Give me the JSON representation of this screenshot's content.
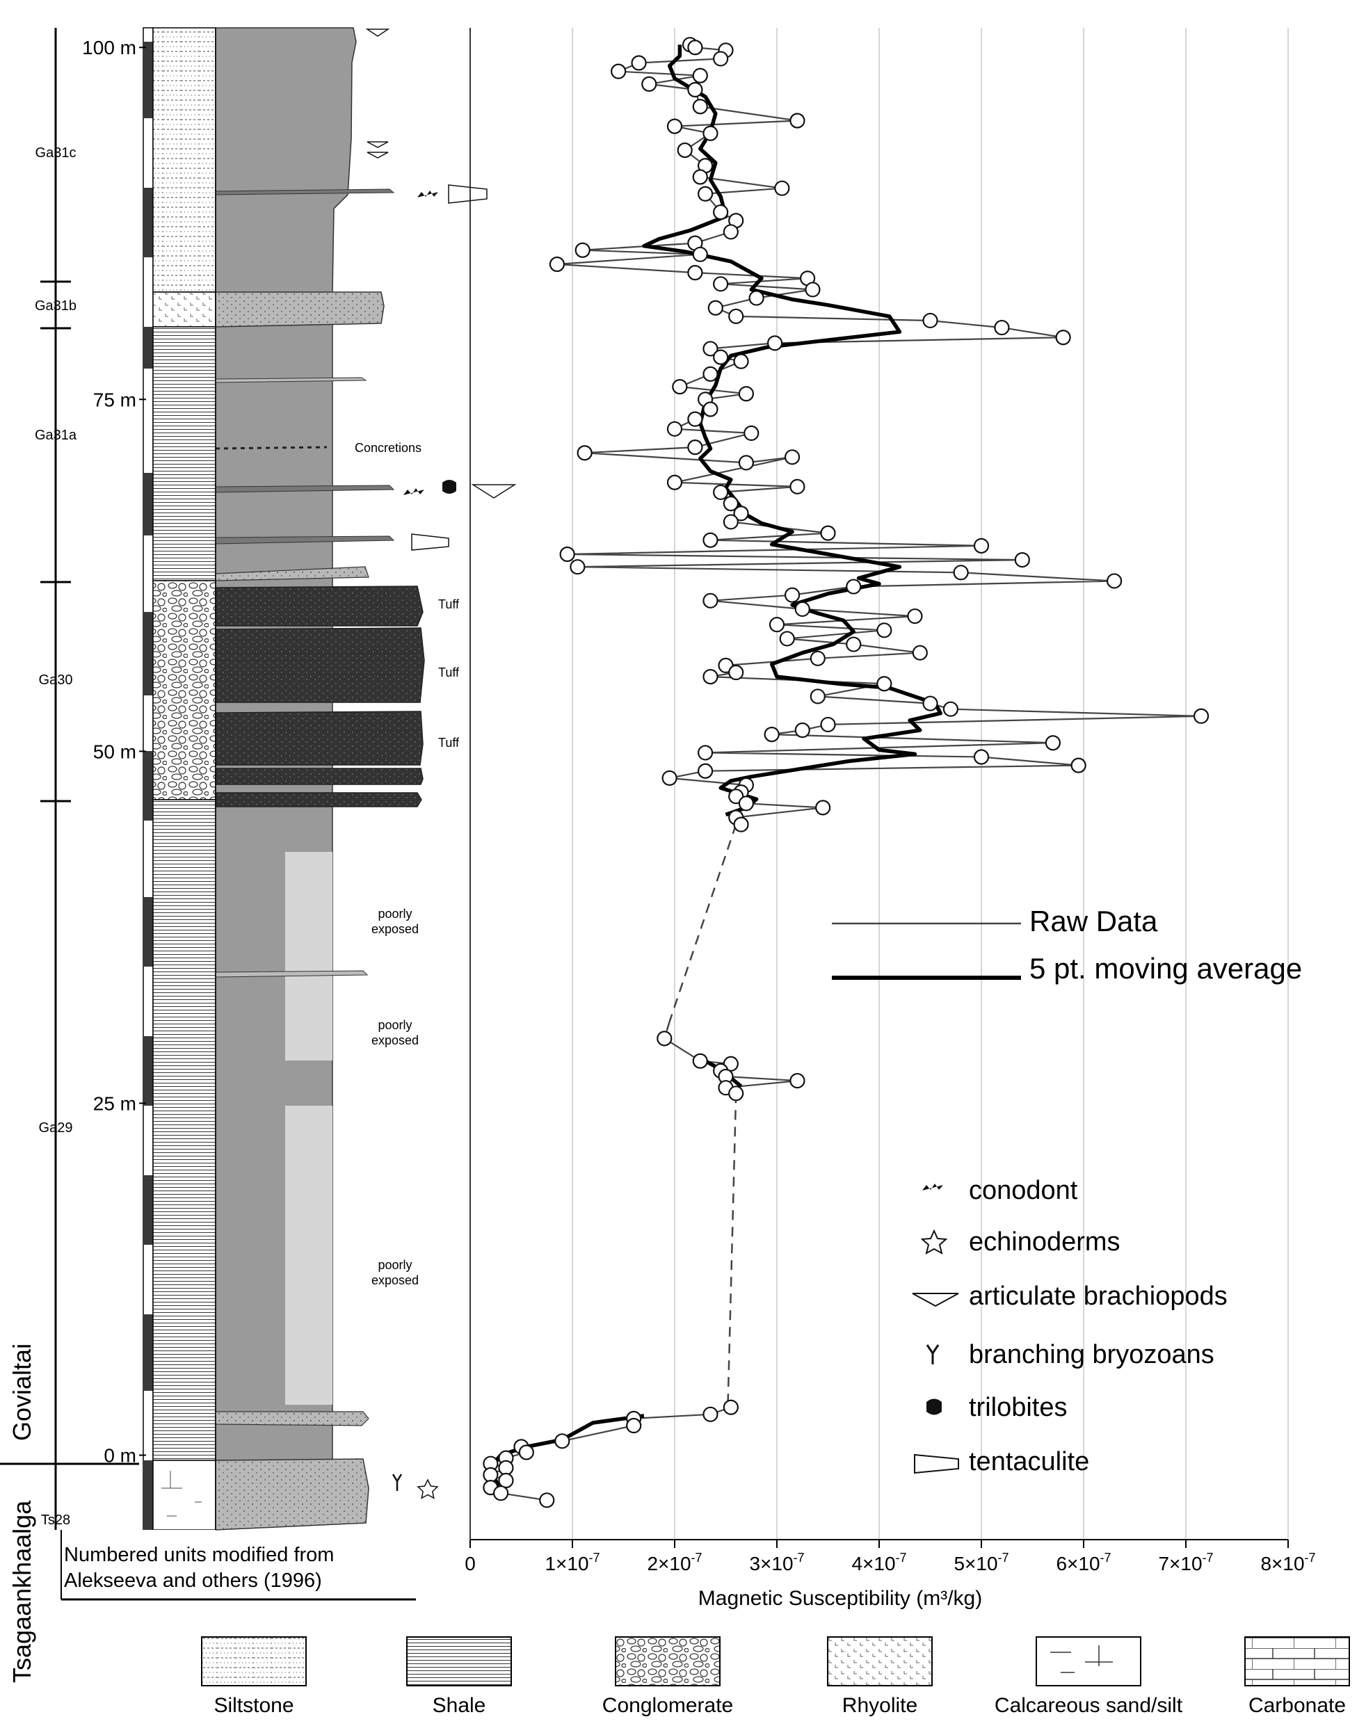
{
  "chart_data": {
    "type": "line",
    "xlabel": "Magnetic Susceptibility (m³/kg)",
    "ylabel": "",
    "xlim": [
      0,
      8e-07
    ],
    "ylim": [
      -6,
      101
    ],
    "x_tick_labels": [
      "0",
      "1×10",
      "2×10",
      "3×10",
      "4×10",
      "5×10",
      "6×10",
      "7×10",
      "8×10"
    ],
    "x_tick_exponent": "-7",
    "depth_labels": [
      {
        "value": 100,
        "label": "100 m"
      },
      {
        "value": 75,
        "label": "75 m"
      },
      {
        "value": 50,
        "label": "50 m"
      },
      {
        "value": 25,
        "label": "25 m"
      },
      {
        "value": 0,
        "label": "0 m"
      }
    ],
    "grid": "vertical",
    "legend_position": "right-middle",
    "series": [
      {
        "name": "Raw Data",
        "points": [
          [
            2.15e-07,
            100.2
          ],
          [
            2.2e-07,
            100.0
          ],
          [
            2.5e-07,
            99.8
          ],
          [
            2.45e-07,
            99.2
          ],
          [
            1.65e-07,
            98.9
          ],
          [
            1.45e-07,
            98.3
          ],
          [
            2.25e-07,
            98.0
          ],
          [
            1.75e-07,
            97.4
          ],
          [
            2.2e-07,
            97.0
          ],
          [
            2.25e-07,
            95.8
          ],
          [
            3.2e-07,
            94.8
          ],
          [
            2e-07,
            94.4
          ],
          [
            2.35e-07,
            93.9
          ],
          [
            2.1e-07,
            92.7
          ],
          [
            2.3e-07,
            91.6
          ],
          [
            2.25e-07,
            90.8
          ],
          [
            3.05e-07,
            90.0
          ],
          [
            2.3e-07,
            89.6
          ],
          [
            2.45e-07,
            88.3
          ],
          [
            2.6e-07,
            87.7
          ],
          [
            2.55e-07,
            86.9
          ],
          [
            2.2e-07,
            86.1
          ],
          [
            1.1e-07,
            85.6
          ],
          [
            2.25e-07,
            85.3
          ],
          [
            8.5e-08,
            84.6
          ],
          [
            2.2e-07,
            84.0
          ],
          [
            3.3e-07,
            83.6
          ],
          [
            2.45e-07,
            83.2
          ],
          [
            3.35e-07,
            82.8
          ],
          [
            2.8e-07,
            82.2
          ],
          [
            2.4e-07,
            81.5
          ],
          [
            2.6e-07,
            80.9
          ],
          [
            4.5e-07,
            80.6
          ],
          [
            5.2e-07,
            80.1
          ],
          [
            5.8e-07,
            79.4
          ],
          [
            2.98e-07,
            79.0
          ],
          [
            2.35e-07,
            78.6
          ],
          [
            2.45e-07,
            78.0
          ],
          [
            2.65e-07,
            77.7
          ],
          [
            2.35e-07,
            76.8
          ],
          [
            2.05e-07,
            75.9
          ],
          [
            2.7e-07,
            75.4
          ],
          [
            2.3e-07,
            75.0
          ],
          [
            2.35e-07,
            74.3
          ],
          [
            2.2e-07,
            73.6
          ],
          [
            2e-07,
            72.9
          ],
          [
            2.75e-07,
            72.6
          ],
          [
            2.2e-07,
            71.6
          ],
          [
            1.12e-07,
            71.2
          ],
          [
            2.7e-07,
            70.5
          ],
          [
            3.15e-07,
            70.9
          ],
          [
            2e-07,
            69.1
          ],
          [
            3.2e-07,
            68.8
          ],
          [
            2.45e-07,
            68.4
          ],
          [
            2.55e-07,
            67.6
          ],
          [
            2.65e-07,
            66.9
          ],
          [
            2.55e-07,
            66.3
          ],
          [
            3.5e-07,
            65.5
          ],
          [
            2.35e-07,
            65.0
          ],
          [
            5e-07,
            64.6
          ],
          [
            9.5e-08,
            64.0
          ],
          [
            5.4e-07,
            63.6
          ],
          [
            1.05e-07,
            63.1
          ],
          [
            4.8e-07,
            62.7
          ],
          [
            6.3e-07,
            62.1
          ],
          [
            3.75e-07,
            61.7
          ],
          [
            3.15e-07,
            61.1
          ],
          [
            2.35e-07,
            60.7
          ],
          [
            3.25e-07,
            60.1
          ],
          [
            4.35e-07,
            59.6
          ],
          [
            3e-07,
            59.0
          ],
          [
            4.05e-07,
            58.6
          ],
          [
            3.1e-07,
            58.0
          ],
          [
            3.75e-07,
            57.6
          ],
          [
            4.4e-07,
            57.0
          ],
          [
            3.4e-07,
            56.6
          ],
          [
            2.5e-07,
            56.1
          ],
          [
            2.6e-07,
            55.6
          ],
          [
            2.35e-07,
            55.3
          ],
          [
            4.05e-07,
            54.8
          ],
          [
            3.4e-07,
            53.9
          ],
          [
            4.5e-07,
            53.4
          ],
          [
            4.7e-07,
            53.0
          ],
          [
            7.15e-07,
            52.5
          ],
          [
            3.5e-07,
            51.9
          ],
          [
            3.25e-07,
            51.5
          ],
          [
            2.95e-07,
            51.2
          ],
          [
            5.7e-07,
            50.6
          ],
          [
            2.3e-07,
            49.9
          ],
          [
            5e-07,
            49.6
          ],
          [
            5.95e-07,
            49.0
          ],
          [
            2.3e-07,
            48.6
          ],
          [
            1.95e-07,
            48.1
          ],
          [
            2.7e-07,
            47.6
          ],
          [
            2.65e-07,
            47.1
          ],
          [
            2.6e-07,
            46.8
          ],
          [
            2.7e-07,
            46.3
          ],
          [
            3.45e-07,
            46.0
          ],
          [
            2.6e-07,
            45.3
          ],
          [
            2.65e-07,
            44.8
          ]
        ]
      },
      {
        "name": "Raw Data",
        "points": [
          [
            1.9e-07,
            29.6
          ],
          [
            2.25e-07,
            28.0
          ],
          [
            2.55e-07,
            27.8
          ],
          [
            2.45e-07,
            27.3
          ],
          [
            2.5e-07,
            26.9
          ],
          [
            3.2e-07,
            26.6
          ],
          [
            2.5e-07,
            26.1
          ],
          [
            2.6e-07,
            25.7
          ]
        ]
      },
      {
        "name": "Raw Data",
        "points": [
          [
            2.55e-07,
            3.4
          ],
          [
            2.35e-07,
            2.9
          ],
          [
            1.6e-07,
            2.6
          ],
          [
            1.6e-07,
            2.1
          ],
          [
            9e-08,
            1.0
          ],
          [
            5e-08,
            0.6
          ],
          [
            5.5e-08,
            0.2
          ],
          [
            3.5e-08,
            -0.2
          ],
          [
            2e-08,
            -0.6
          ],
          [
            3.5e-08,
            -0.9
          ],
          [
            2e-08,
            -1.4
          ],
          [
            3.5e-08,
            -1.8
          ],
          [
            2e-08,
            -2.3
          ],
          [
            3e-08,
            -2.7
          ],
          [
            7.5e-08,
            -3.2
          ]
        ]
      },
      {
        "name": "5 pt. moving average",
        "points": [
          [
            2.05e-07,
            100.2
          ],
          [
            2.05e-07,
            99.4
          ],
          [
            1.95e-07,
            98.7
          ],
          [
            2e-07,
            97.8
          ],
          [
            2.3e-07,
            96.5
          ],
          [
            2.4e-07,
            95.3
          ],
          [
            2.35e-07,
            94.0
          ],
          [
            2.25e-07,
            92.8
          ],
          [
            2.4e-07,
            91.8
          ],
          [
            2.35e-07,
            90.6
          ],
          [
            2.45e-07,
            89.4
          ],
          [
            2.5e-07,
            88.0
          ],
          [
            2.15e-07,
            87.0
          ],
          [
            1.85e-07,
            86.4
          ],
          [
            1.7e-07,
            85.9
          ],
          [
            2.1e-07,
            85.5
          ],
          [
            2.55e-07,
            84.8
          ],
          [
            2.85e-07,
            83.6
          ],
          [
            2.75e-07,
            82.8
          ],
          [
            3.15e-07,
            82.1
          ],
          [
            3.5e-07,
            81.7
          ],
          [
            4.1e-07,
            80.9
          ],
          [
            4.2e-07,
            79.8
          ],
          [
            3.6e-07,
            79.3
          ],
          [
            2.9e-07,
            78.7
          ],
          [
            2.55e-07,
            78.1
          ],
          [
            2.45e-07,
            77.2
          ],
          [
            2.4e-07,
            76.0
          ],
          [
            2.3e-07,
            74.8
          ],
          [
            2.25e-07,
            73.3
          ],
          [
            2.3e-07,
            72.3
          ],
          [
            2.35e-07,
            71.5
          ],
          [
            2.25e-07,
            70.8
          ],
          [
            2.35e-07,
            69.9
          ],
          [
            2.55e-07,
            69.3
          ],
          [
            2.5e-07,
            68.7
          ],
          [
            2.6e-07,
            67.8
          ],
          [
            2.7e-07,
            66.8
          ],
          [
            2.85e-07,
            66.2
          ],
          [
            3.15e-07,
            65.6
          ],
          [
            2.95e-07,
            64.7
          ],
          [
            3.5e-07,
            64.0
          ],
          [
            4.2e-07,
            63.1
          ],
          [
            3.8e-07,
            62.3
          ],
          [
            4e-07,
            61.9
          ],
          [
            3.5e-07,
            61.2
          ],
          [
            3.15e-07,
            60.4
          ],
          [
            3.4e-07,
            59.8
          ],
          [
            3.65e-07,
            59.3
          ],
          [
            3.75e-07,
            58.5
          ],
          [
            3.55e-07,
            57.6
          ],
          [
            3.25e-07,
            57.0
          ],
          [
            2.95e-07,
            56.2
          ],
          [
            3e-07,
            55.3
          ],
          [
            3.6e-07,
            54.8
          ],
          [
            4.1e-07,
            54.5
          ],
          [
            4.55e-07,
            53.4
          ],
          [
            4.6e-07,
            52.7
          ],
          [
            4.3e-07,
            52.2
          ],
          [
            4.4e-07,
            51.5
          ],
          [
            3.85e-07,
            50.9
          ],
          [
            4e-07,
            50.1
          ],
          [
            4.35e-07,
            49.8
          ],
          [
            3.7e-07,
            49.3
          ],
          [
            3.1e-07,
            48.6
          ],
          [
            2.75e-07,
            48.2
          ],
          [
            2.55e-07,
            47.9
          ],
          [
            2.45e-07,
            47.4
          ],
          [
            2.8e-07,
            46.6
          ],
          [
            2.7e-07,
            46.0
          ],
          [
            2.5e-07,
            45.5
          ]
        ]
      },
      {
        "name": "5 pt. moving average",
        "points": [
          [
            2.25e-07,
            28.2
          ],
          [
            2.4e-07,
            27.6
          ],
          [
            2.55e-07,
            26.8
          ],
          [
            2.65e-07,
            26.2
          ]
        ]
      },
      {
        "name": "5 pt. moving average",
        "points": [
          [
            1.7e-07,
            2.8
          ],
          [
            1.2e-07,
            2.3
          ],
          [
            9e-08,
            1.1
          ],
          [
            5.5e-08,
            0.6
          ],
          [
            3e-08,
            0.0
          ],
          [
            2e-08,
            -0.8
          ],
          [
            2.5e-08,
            -1.8
          ],
          [
            3e-08,
            -2.7
          ]
        ]
      }
    ],
    "gap_connectors": [
      {
        "from": [
          2.6e-07,
          44.8
        ],
        "to": [
          1.95e-07,
          30.8
        ]
      },
      {
        "from": [
          1.95e-07,
          30.8
        ],
        "to": [
          1.9e-07,
          29.6
        ]
      },
      {
        "from": [
          2.6e-07,
          25.7
        ],
        "to": [
          2.52e-07,
          3.4
        ]
      }
    ]
  },
  "legend": {
    "raw": "Raw Data",
    "avg": "5 pt. moving average"
  },
  "fossil_legend": [
    {
      "icon": "conodont-icon",
      "label": "conodont"
    },
    {
      "icon": "echinoderm-icon",
      "label": "echinoderms"
    },
    {
      "icon": "brachiopod-icon",
      "label": "articulate brachiopods"
    },
    {
      "icon": "bryozoan-icon",
      "label": "branching bryozoans"
    },
    {
      "icon": "trilobite-icon",
      "label": "trilobites"
    },
    {
      "icon": "tentaculite-icon",
      "label": "tentaculite"
    }
  ],
  "column": {
    "units": [
      {
        "label": "Ga31c"
      },
      {
        "label": "Ga31b"
      },
      {
        "label": "Ga31a"
      },
      {
        "label": "Ga30"
      },
      {
        "label": "Ga29"
      },
      {
        "label": "Ts28"
      }
    ],
    "formations": [
      "Govialtai",
      "Tsagaankhaalga"
    ],
    "annotations": {
      "concretions": "Concretions",
      "tuff": "Tuff",
      "poorly": "poorly",
      "exposed": "exposed"
    },
    "source_note_line1": "Numbered units modified from",
    "source_note_line2": "Alekseeva and others (1996)"
  },
  "lithology_legend": [
    {
      "pattern": "siltstone",
      "label": "Siltstone"
    },
    {
      "pattern": "shale",
      "label": "Shale"
    },
    {
      "pattern": "conglomerate",
      "label": "Conglomerate"
    },
    {
      "pattern": "rhyolite",
      "label": "Rhyolite"
    },
    {
      "pattern": "calcareous",
      "label": "Calcareous sand/silt"
    },
    {
      "pattern": "carbonate",
      "label": "Carbonate"
    }
  ],
  "colors": {
    "raw_line": "#444444",
    "avg_line": "#000000",
    "grid": "#c8c8c8",
    "shale_fill": "#9a9a9a",
    "tuff_fill": "#333333",
    "poor_exposure": "#d6d6d6",
    "sand_fill": "#bdbdbd"
  }
}
